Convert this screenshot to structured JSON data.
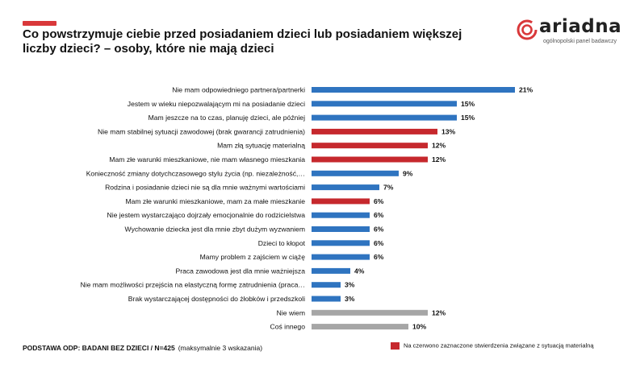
{
  "title": "Co powstrzymuje ciebie przed posiadaniem dzieci lub posiadaniem większej liczby dzieci? – osoby, które nie mają dzieci",
  "logo": {
    "name": "ariadna",
    "subtitle": "ogólnopolski panel badawczy"
  },
  "colors": {
    "blue": "#2f74c0",
    "red": "#c6282d",
    "gray": "#a6a6a6",
    "accent": "#d9383a"
  },
  "footer": {
    "base": "PODSTAWA ODP: BADANI BEZ DZIECI / N=425",
    "note": "(maksymalnie 3 wskazania)"
  },
  "legend": {
    "label": "Na czerwono zaznaczone stwierdzenia związane z sytuacją materialną",
    "color": "red"
  },
  "chart_data": {
    "type": "bar",
    "orientation": "horizontal",
    "unit": "%",
    "categories": [
      "Nie mam odpowiedniego partnera/partnerki",
      "Jestem w wieku niepozwalającym mi na posiadanie dzieci",
      "Mam jeszcze na to czas, planuję dzieci, ale później",
      "Nie mam stabilnej sytuacji zawodowej (brak gwarancji zatrudnienia)",
      "Mam złą sytuację materialną",
      "Mam złe warunki mieszkaniowe, nie mam własnego mieszkania",
      "Konieczność zmiany dotychczasowego stylu życia (np. niezależność,…",
      "Rodzina i posiadanie dzieci nie są dla mnie ważnymi wartościami",
      "Mam złe warunki mieszkaniowe, mam za małe mieszkanie",
      "Nie jestem wystarczająco dojrzały emocjonalnie do rodzicielstwa",
      "Wychowanie dziecka jest dla mnie zbyt dużym wyzwaniem",
      "Dzieci to kłopot",
      "Mamy problem z zajściem w ciążę",
      "Praca zawodowa jest dla mnie ważniejsza",
      "Nie mam możliwości przejścia na elastyczną formę zatrudnienia (praca…",
      "Brak wystarczającej dostępności do żłobków i przedszkoli",
      "Nie wiem",
      "Coś innego"
    ],
    "values": [
      21,
      15,
      15,
      13,
      12,
      12,
      9,
      7,
      6,
      6,
      6,
      6,
      6,
      4,
      3,
      3,
      12,
      10
    ],
    "value_labels": [
      "21%",
      "15%",
      "15%",
      "13%",
      "12%",
      "12%",
      "9%",
      "7%",
      "6%",
      "6%",
      "6%",
      "6%",
      "6%",
      "4%",
      "3%",
      "3%",
      "12%",
      "10%"
    ],
    "colors": [
      "blue",
      "blue",
      "blue",
      "red",
      "red",
      "red",
      "blue",
      "blue",
      "red",
      "blue",
      "blue",
      "blue",
      "blue",
      "blue",
      "blue",
      "blue",
      "gray",
      "gray"
    ],
    "xlim": [
      0,
      21
    ],
    "grid": false,
    "legend_position": "bottom-right"
  }
}
